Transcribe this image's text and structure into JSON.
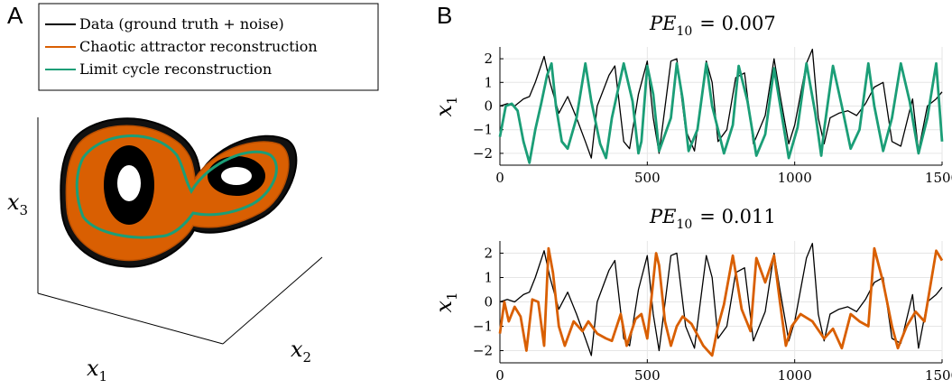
{
  "colors": {
    "data": "#000000",
    "chaotic": "#d95f02",
    "limit_cycle": "#1b9e77",
    "grid": "#e6e6e6"
  },
  "panel_a": {
    "letter": "A",
    "legend": [
      {
        "label": "Data (ground truth + noise)",
        "color": "#000000"
      },
      {
        "label": "Chaotic attractor reconstruction",
        "color": "#d95f02"
      },
      {
        "label": "Limit cycle reconstruction",
        "color": "#1b9e77"
      }
    ],
    "axes": {
      "x": "x",
      "x_sub": "1",
      "y": "x",
      "y_sub": "2",
      "z": "x",
      "z_sub": "3"
    }
  },
  "panel_b": {
    "letter": "B",
    "ylabel": "x",
    "ylabel_sub": "1",
    "top_title": {
      "prefix": "PE",
      "sub": "10",
      "value": "= 0.007"
    },
    "bottom_title": {
      "prefix": "PE",
      "sub": "10",
      "value": "= 0.011"
    }
  },
  "chart_data": [
    {
      "type": "line",
      "title": "PE10 = 0.007",
      "ylabel": "x1",
      "xlim": [
        0,
        1500
      ],
      "ylim": [
        -2.5,
        2.5
      ],
      "xticks": [
        0,
        500,
        1000,
        1500
      ],
      "yticks": [
        2,
        1,
        0,
        -1,
        -2
      ],
      "series": [
        {
          "color": "#000000",
          "x": [
            0,
            25,
            50,
            80,
            100,
            120,
            150,
            170,
            200,
            230,
            260,
            290,
            310,
            330,
            370,
            390,
            420,
            440,
            470,
            500,
            520,
            540,
            580,
            600,
            630,
            660,
            700,
            720,
            740,
            770,
            800,
            830,
            860,
            900,
            930,
            950,
            980,
            1000,
            1040,
            1060,
            1080,
            1100,
            1120,
            1150,
            1180,
            1210,
            1240,
            1270,
            1300,
            1330,
            1360,
            1400,
            1420,
            1450,
            1480,
            1500
          ],
          "y": [
            0,
            0.1,
            0,
            0.3,
            0.4,
            1.0,
            2.1,
            1.0,
            -0.3,
            0.4,
            -0.5,
            -1.5,
            -2.2,
            0.0,
            1.3,
            1.7,
            -1.5,
            -1.8,
            0.5,
            1.9,
            -0.5,
            -2.0,
            1.9,
            2.0,
            -1.0,
            -1.9,
            1.9,
            1.0,
            -1.5,
            -1.0,
            1.2,
            1.4,
            -1.6,
            -0.4,
            2.0,
            0.5,
            -1.6,
            -0.8,
            1.8,
            2.4,
            -0.5,
            -1.6,
            -0.5,
            -0.3,
            -0.2,
            -0.4,
            0.1,
            0.8,
            1.0,
            -1.5,
            -1.7,
            0.3,
            -1.9,
            0.0,
            0.3,
            0.6
          ]
        },
        {
          "color": "#1b9e77",
          "x": [
            0,
            20,
            40,
            60,
            80,
            100,
            120,
            140,
            160,
            175,
            190,
            210,
            230,
            260,
            290,
            310,
            340,
            360,
            380,
            420,
            450,
            470,
            480,
            500,
            520,
            540,
            580,
            600,
            620,
            640,
            670,
            700,
            720,
            760,
            790,
            810,
            840,
            870,
            900,
            930,
            950,
            980,
            1010,
            1040,
            1070,
            1090,
            1100,
            1130,
            1160,
            1190,
            1220,
            1250,
            1270,
            1300,
            1330,
            1360,
            1390,
            1420,
            1450,
            1480,
            1500
          ],
          "y": [
            -1.3,
            0.0,
            0.1,
            -0.2,
            -1.5,
            -2.4,
            -1.0,
            0.1,
            1.3,
            1.8,
            0.0,
            -1.5,
            -1.8,
            -0.5,
            1.8,
            0.2,
            -1.6,
            -2.2,
            -0.5,
            1.8,
            0.2,
            -2.0,
            -1.5,
            1.7,
            0.5,
            -1.9,
            -0.5,
            1.8,
            0.3,
            -1.9,
            -1.0,
            1.8,
            0.0,
            -2.0,
            -0.8,
            1.7,
            0.2,
            -2.1,
            -1.2,
            1.6,
            0.1,
            -2.2,
            -0.9,
            1.8,
            -0.3,
            -2.1,
            -1.0,
            1.7,
            0.0,
            -1.8,
            -1.0,
            1.8,
            0.0,
            -1.9,
            -0.5,
            1.8,
            0.2,
            -2.0,
            -0.5,
            1.8,
            -1.5
          ]
        }
      ]
    },
    {
      "type": "line",
      "title": "PE10 = 0.011",
      "ylabel": "x1",
      "xlim": [
        0,
        1500
      ],
      "ylim": [
        -2.5,
        2.5
      ],
      "xticks": [
        0,
        500,
        1000,
        1500
      ],
      "yticks": [
        2,
        1,
        0,
        -1,
        -2
      ],
      "series": [
        {
          "color": "#000000",
          "x": [
            0,
            25,
            50,
            80,
            100,
            120,
            150,
            170,
            200,
            230,
            260,
            290,
            310,
            330,
            370,
            390,
            420,
            440,
            470,
            500,
            520,
            540,
            580,
            600,
            630,
            660,
            700,
            720,
            740,
            770,
            800,
            830,
            860,
            900,
            930,
            950,
            980,
            1000,
            1040,
            1060,
            1080,
            1100,
            1120,
            1150,
            1180,
            1210,
            1240,
            1270,
            1300,
            1330,
            1360,
            1400,
            1420,
            1450,
            1480,
            1500
          ],
          "y": [
            0,
            0.1,
            0,
            0.3,
            0.4,
            1.0,
            2.1,
            1.0,
            -0.3,
            0.4,
            -0.5,
            -1.5,
            -2.2,
            0.0,
            1.3,
            1.7,
            -1.5,
            -1.8,
            0.5,
            1.9,
            -0.5,
            -2.0,
            1.9,
            2.0,
            -1.0,
            -1.9,
            1.9,
            1.0,
            -1.5,
            -1.0,
            1.2,
            1.4,
            -1.6,
            -0.4,
            2.0,
            0.5,
            -1.6,
            -0.8,
            1.8,
            2.4,
            -0.5,
            -1.6,
            -0.5,
            -0.3,
            -0.2,
            -0.4,
            0.1,
            0.8,
            1.0,
            -1.5,
            -1.7,
            0.3,
            -1.9,
            0.0,
            0.3,
            0.6
          ]
        },
        {
          "color": "#d95f02",
          "x": [
            0,
            15,
            30,
            50,
            70,
            90,
            110,
            130,
            150,
            165,
            180,
            200,
            220,
            250,
            280,
            300,
            330,
            360,
            380,
            410,
            430,
            460,
            480,
            500,
            530,
            540,
            560,
            580,
            600,
            620,
            650,
            690,
            720,
            740,
            760,
            790,
            800,
            820,
            850,
            870,
            900,
            930,
            950,
            970,
            990,
            1020,
            1060,
            1100,
            1130,
            1160,
            1190,
            1220,
            1250,
            1270,
            1300,
            1330,
            1350,
            1380,
            1410,
            1440,
            1480,
            1500
          ],
          "y": [
            -1.3,
            0.0,
            -0.8,
            -0.2,
            -0.6,
            -2.0,
            0.1,
            0.0,
            -1.8,
            2.2,
            1.2,
            -1.0,
            -1.8,
            -0.8,
            -1.2,
            -0.8,
            -1.3,
            -1.5,
            -1.6,
            -0.5,
            -1.8,
            -0.7,
            -0.5,
            -1.5,
            2.0,
            1.5,
            -0.8,
            -1.8,
            -1.0,
            -0.6,
            -0.9,
            -1.8,
            -2.2,
            -1.0,
            -0.1,
            1.9,
            1.2,
            -0.3,
            -1.2,
            1.8,
            0.8,
            1.9,
            0.0,
            -1.8,
            -1.0,
            -0.5,
            -0.8,
            -1.5,
            -1.1,
            -1.9,
            -0.5,
            -0.8,
            -1.0,
            2.2,
            0.8,
            -1.0,
            -1.9,
            -1.0,
            -0.4,
            -0.8,
            2.1,
            1.7
          ]
        }
      ]
    }
  ]
}
